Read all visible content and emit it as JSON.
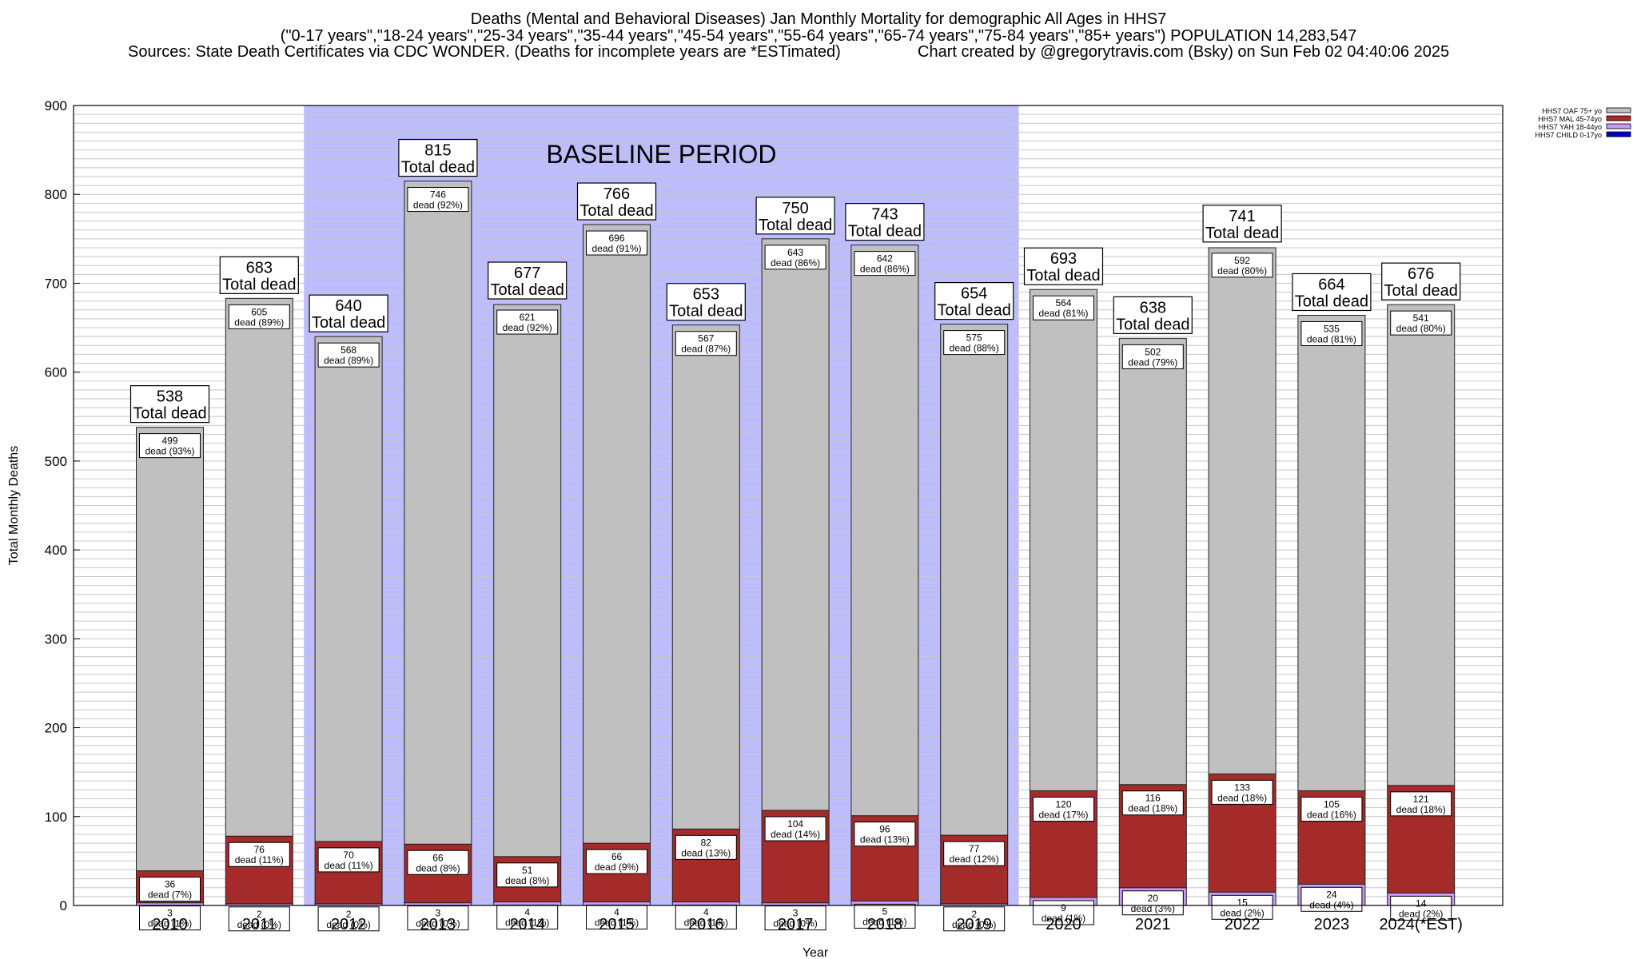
{
  "header": {
    "line1": "Deaths (Mental and Behavioral Diseases) Jan Monthly Mortality for demographic All Ages in HHS7",
    "line2": "(\"0-17 years\",\"18-24 years\",\"25-34 years\",\"35-44 years\",\"45-54 years\",\"55-64 years\",\"65-74 years\",\"75-84 years\",\"85+ years\") POPULATION 14,283,547",
    "line3_left": "Sources: State Death Certificates via CDC WONDER. (Deaths for incomplete years are *ESTimated)",
    "line3_right": "Chart created by @gregorytravis.com (Bsky) on Sun Feb 02 04:40:06 2025"
  },
  "chart_data": {
    "type": "bar",
    "stacked": true,
    "xlabel": "Year",
    "ylabel": "Total Monthly Deaths",
    "ylim": [
      0,
      900
    ],
    "y_ticks": [
      0,
      100,
      200,
      300,
      400,
      500,
      600,
      700,
      800,
      900
    ],
    "grid": "horizontal minor lines every 10",
    "legend_position": "top-right",
    "baseline_label": "BASELINE PERIOD",
    "baseline_span": [
      "2012",
      "2019"
    ],
    "baseline_color": "#bcbcff",
    "total_suffix": "Total dead",
    "segment_label_word": "dead",
    "categories": [
      "2010",
      "2011",
      "2012",
      "2013",
      "2014",
      "2015",
      "2016",
      "2017",
      "2018",
      "2019",
      "2020",
      "2021",
      "2022",
      "2023",
      "2024(*EST)"
    ],
    "totals": [
      538,
      683,
      640,
      815,
      677,
      766,
      653,
      750,
      743,
      654,
      693,
      638,
      741,
      664,
      676
    ],
    "series": [
      {
        "name": "HHS7 CHILD 0-17yo",
        "color": "#0000cc",
        "values": [
          0,
          0,
          0,
          0,
          0,
          0,
          0,
          0,
          0,
          0,
          0,
          0,
          0,
          0,
          0
        ]
      },
      {
        "name": "HHS7 YAH 18-44yo",
        "color": "#c79af5",
        "values": [
          3,
          2,
          2,
          3,
          4,
          4,
          4,
          3,
          5,
          2,
          9,
          20,
          15,
          24,
          14
        ],
        "labels": [
          "3",
          "2",
          "2",
          "3",
          "4",
          "4",
          "4",
          "3",
          "5",
          "2",
          "9",
          "20",
          "15",
          "24",
          "14"
        ],
        "pct": [
          "dead (1%)",
          "dead (0%)",
          "dead (0%)",
          "dead (0%)",
          "dead (1%)",
          "dead (1%)",
          "dead (1%)",
          "dead (0%)",
          "dead (1%)",
          "dead (0%)",
          "dead (1%)",
          "dead (3%)",
          "dead (2%)",
          "dead (4%)",
          "dead (2%)"
        ]
      },
      {
        "name": "HHS7 MAL 45-74yo",
        "color": "#a52a2a",
        "values": [
          36,
          76,
          70,
          66,
          51,
          66,
          82,
          104,
          96,
          77,
          120,
          116,
          133,
          105,
          121
        ],
        "labels": [
          "36",
          "76",
          "70",
          "66",
          "51",
          "66",
          "82",
          "104",
          "96",
          "77",
          "120",
          "116",
          "133",
          "105",
          "121"
        ],
        "pct": [
          "dead (7%)",
          "dead (11%)",
          "dead (11%)",
          "dead (8%)",
          "dead (8%)",
          "dead (9%)",
          "dead (13%)",
          "dead (14%)",
          "dead (13%)",
          "dead (12%)",
          "dead (17%)",
          "dead (18%)",
          "dead (18%)",
          "dead (16%)",
          "dead (18%)"
        ]
      },
      {
        "name": "HHS7 OAF 75+ yo",
        "color": "#c0c0c0",
        "values": [
          499,
          605,
          568,
          746,
          621,
          696,
          567,
          643,
          642,
          575,
          564,
          502,
          592,
          535,
          541
        ],
        "labels": [
          "499",
          "605",
          "568",
          "746",
          "621",
          "696",
          "567",
          "643",
          "642",
          "575",
          "564",
          "502",
          "592",
          "535",
          "541"
        ],
        "pct": [
          "dead (93%)",
          "dead (89%)",
          "dead (89%)",
          "dead (92%)",
          "dead (92%)",
          "dead (91%)",
          "dead (87%)",
          "dead (86%)",
          "dead (86%)",
          "dead (88%)",
          "dead (81%)",
          "dead (79%)",
          "dead (80%)",
          "dead (81%)",
          "dead (80%)"
        ]
      }
    ],
    "legend_order": [
      "HHS7 OAF 75+ yo",
      "HHS7 MAL 45-74yo",
      "HHS7 YAH 18-44yo",
      "HHS7 CHILD 0-17yo"
    ]
  }
}
